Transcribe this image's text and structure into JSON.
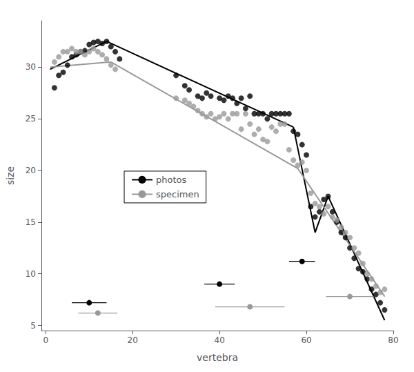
{
  "chart_data": {
    "type": "scatter",
    "xlabel": "vertebra",
    "ylabel": "size",
    "xlim": [
      -1,
      80
    ],
    "ylim": [
      4.5,
      34.5
    ],
    "xticks": [
      0,
      20,
      40,
      60,
      80
    ],
    "yticks": [
      5,
      10,
      15,
      20,
      25,
      30
    ],
    "grid": false,
    "legend": "center left",
    "marker": "circle",
    "series": [
      {
        "name": "photos",
        "color": "#000000",
        "values": [
          [
            2,
            28.0
          ],
          [
            3,
            29.2
          ],
          [
            4,
            29.5
          ],
          [
            5,
            30.2
          ],
          [
            6,
            31.0
          ],
          [
            7,
            31.2
          ],
          [
            8,
            31.5
          ],
          [
            9,
            31.6
          ],
          [
            10,
            32.2
          ],
          [
            11,
            32.4
          ],
          [
            12,
            32.5
          ],
          [
            13,
            32.3
          ],
          [
            14,
            32.5
          ],
          [
            15,
            32.0
          ],
          [
            16,
            31.5
          ],
          [
            17,
            30.8
          ],
          [
            30,
            29.2
          ],
          [
            32,
            28.2
          ],
          [
            33,
            27.8
          ],
          [
            35,
            27.2
          ],
          [
            36,
            27.0
          ],
          [
            37,
            27.5
          ],
          [
            38,
            27.2
          ],
          [
            40,
            27.0
          ],
          [
            41,
            26.8
          ],
          [
            42,
            27.2
          ],
          [
            43,
            27.0
          ],
          [
            44,
            26.5
          ],
          [
            45,
            27.0
          ],
          [
            46,
            26.0
          ],
          [
            47,
            27.2
          ],
          [
            48,
            25.5
          ],
          [
            49,
            25.5
          ],
          [
            50,
            25.5
          ],
          [
            51,
            25.0
          ],
          [
            52,
            25.5
          ],
          [
            53,
            25.5
          ],
          [
            54,
            25.5
          ],
          [
            55,
            25.5
          ],
          [
            56,
            25.5
          ],
          [
            57,
            23.8
          ],
          [
            58,
            23.5
          ],
          [
            59,
            22.5
          ],
          [
            60,
            21.5
          ],
          [
            61,
            16.5
          ],
          [
            62,
            15.5
          ],
          [
            63,
            16.0
          ],
          [
            64,
            17.2
          ],
          [
            65,
            17.5
          ],
          [
            66,
            16.0
          ],
          [
            67,
            15.0
          ],
          [
            68,
            14.0
          ],
          [
            69,
            13.5
          ],
          [
            70,
            12.5
          ],
          [
            71,
            11.5
          ],
          [
            72,
            10.5
          ],
          [
            73,
            10.2
          ],
          [
            74,
            9.5
          ],
          [
            75,
            8.5
          ],
          [
            76,
            8.0
          ],
          [
            77,
            7.2
          ],
          [
            78,
            6.5
          ]
        ],
        "line_segments": [
          {
            "x": [
              1,
              14
            ],
            "y": [
              29.8,
              32.5
            ]
          },
          {
            "x": [
              14,
              57
            ],
            "y": [
              32.5,
              24.2
            ]
          },
          {
            "x": [
              57,
              62
            ],
            "y": [
              24.2,
              14.0
            ]
          },
          {
            "x": [
              62,
              65
            ],
            "y": [
              14.0,
              17.5
            ]
          },
          {
            "x": [
              65,
              78
            ],
            "y": [
              17.5,
              5.5
            ]
          }
        ],
        "error_bars": [
          {
            "x": 10,
            "y": 7.2,
            "xerr": 4.0
          },
          {
            "x": 40,
            "y": 9.0,
            "xerr": 3.5
          },
          {
            "x": 59,
            "y": 11.2,
            "xerr": 3.0
          }
        ]
      },
      {
        "name": "specimen",
        "color": "#999999",
        "values": [
          [
            2,
            30.5
          ],
          [
            3,
            31.0
          ],
          [
            4,
            31.5
          ],
          [
            5,
            31.5
          ],
          [
            6,
            31.8
          ],
          [
            7,
            31.5
          ],
          [
            8,
            31.5
          ],
          [
            9,
            31.2
          ],
          [
            10,
            31.5
          ],
          [
            11,
            31.8
          ],
          [
            12,
            31.5
          ],
          [
            13,
            31.2
          ],
          [
            14,
            30.8
          ],
          [
            15,
            30.2
          ],
          [
            16,
            29.8
          ],
          [
            30,
            27.0
          ],
          [
            32,
            26.8
          ],
          [
            33,
            26.5
          ],
          [
            34,
            26.2
          ],
          [
            35,
            25.8
          ],
          [
            36,
            25.5
          ],
          [
            37,
            25.2
          ],
          [
            38,
            25.5
          ],
          [
            39,
            25.0
          ],
          [
            40,
            25.2
          ],
          [
            41,
            25.5
          ],
          [
            42,
            25.0
          ],
          [
            43,
            25.5
          ],
          [
            44,
            25.5
          ],
          [
            45,
            24.0
          ],
          [
            46,
            25.5
          ],
          [
            47,
            24.5
          ],
          [
            48,
            23.5
          ],
          [
            49,
            24.0
          ],
          [
            50,
            23.0
          ],
          [
            51,
            22.8
          ],
          [
            52,
            24.2
          ],
          [
            53,
            23.8
          ],
          [
            54,
            24.5
          ],
          [
            55,
            24.5
          ],
          [
            56,
            22.0
          ],
          [
            57,
            21.0
          ],
          [
            58,
            20.5
          ],
          [
            59,
            20.8
          ],
          [
            60,
            20.0
          ],
          [
            61,
            17.8
          ],
          [
            62,
            16.8
          ],
          [
            63,
            16.5
          ],
          [
            64,
            15.8
          ],
          [
            65,
            16.5
          ],
          [
            66,
            15.5
          ],
          [
            67,
            15.2
          ],
          [
            68,
            14.5
          ],
          [
            69,
            14.0
          ],
          [
            70,
            13.5
          ],
          [
            71,
            12.5
          ],
          [
            72,
            12.0
          ],
          [
            73,
            11.0
          ],
          [
            74,
            10.0
          ],
          [
            75,
            9.5
          ],
          [
            76,
            8.8
          ],
          [
            77,
            8.2
          ],
          [
            78,
            8.5
          ]
        ],
        "line_segments": [
          {
            "x": [
              1,
              15
            ],
            "y": [
              30.0,
              30.5
            ]
          },
          {
            "x": [
              15,
              58
            ],
            "y": [
              30.5,
              20.2
            ]
          },
          {
            "x": [
              58,
              78
            ],
            "y": [
              20.2,
              7.8
            ]
          }
        ],
        "error_bars": [
          {
            "x": 12,
            "y": 6.2,
            "xerr": 4.5
          },
          {
            "x": 47,
            "y": 6.8,
            "xerr": 8.0
          },
          {
            "x": 70,
            "y": 7.8,
            "xerr": 5.5
          }
        ]
      }
    ]
  }
}
